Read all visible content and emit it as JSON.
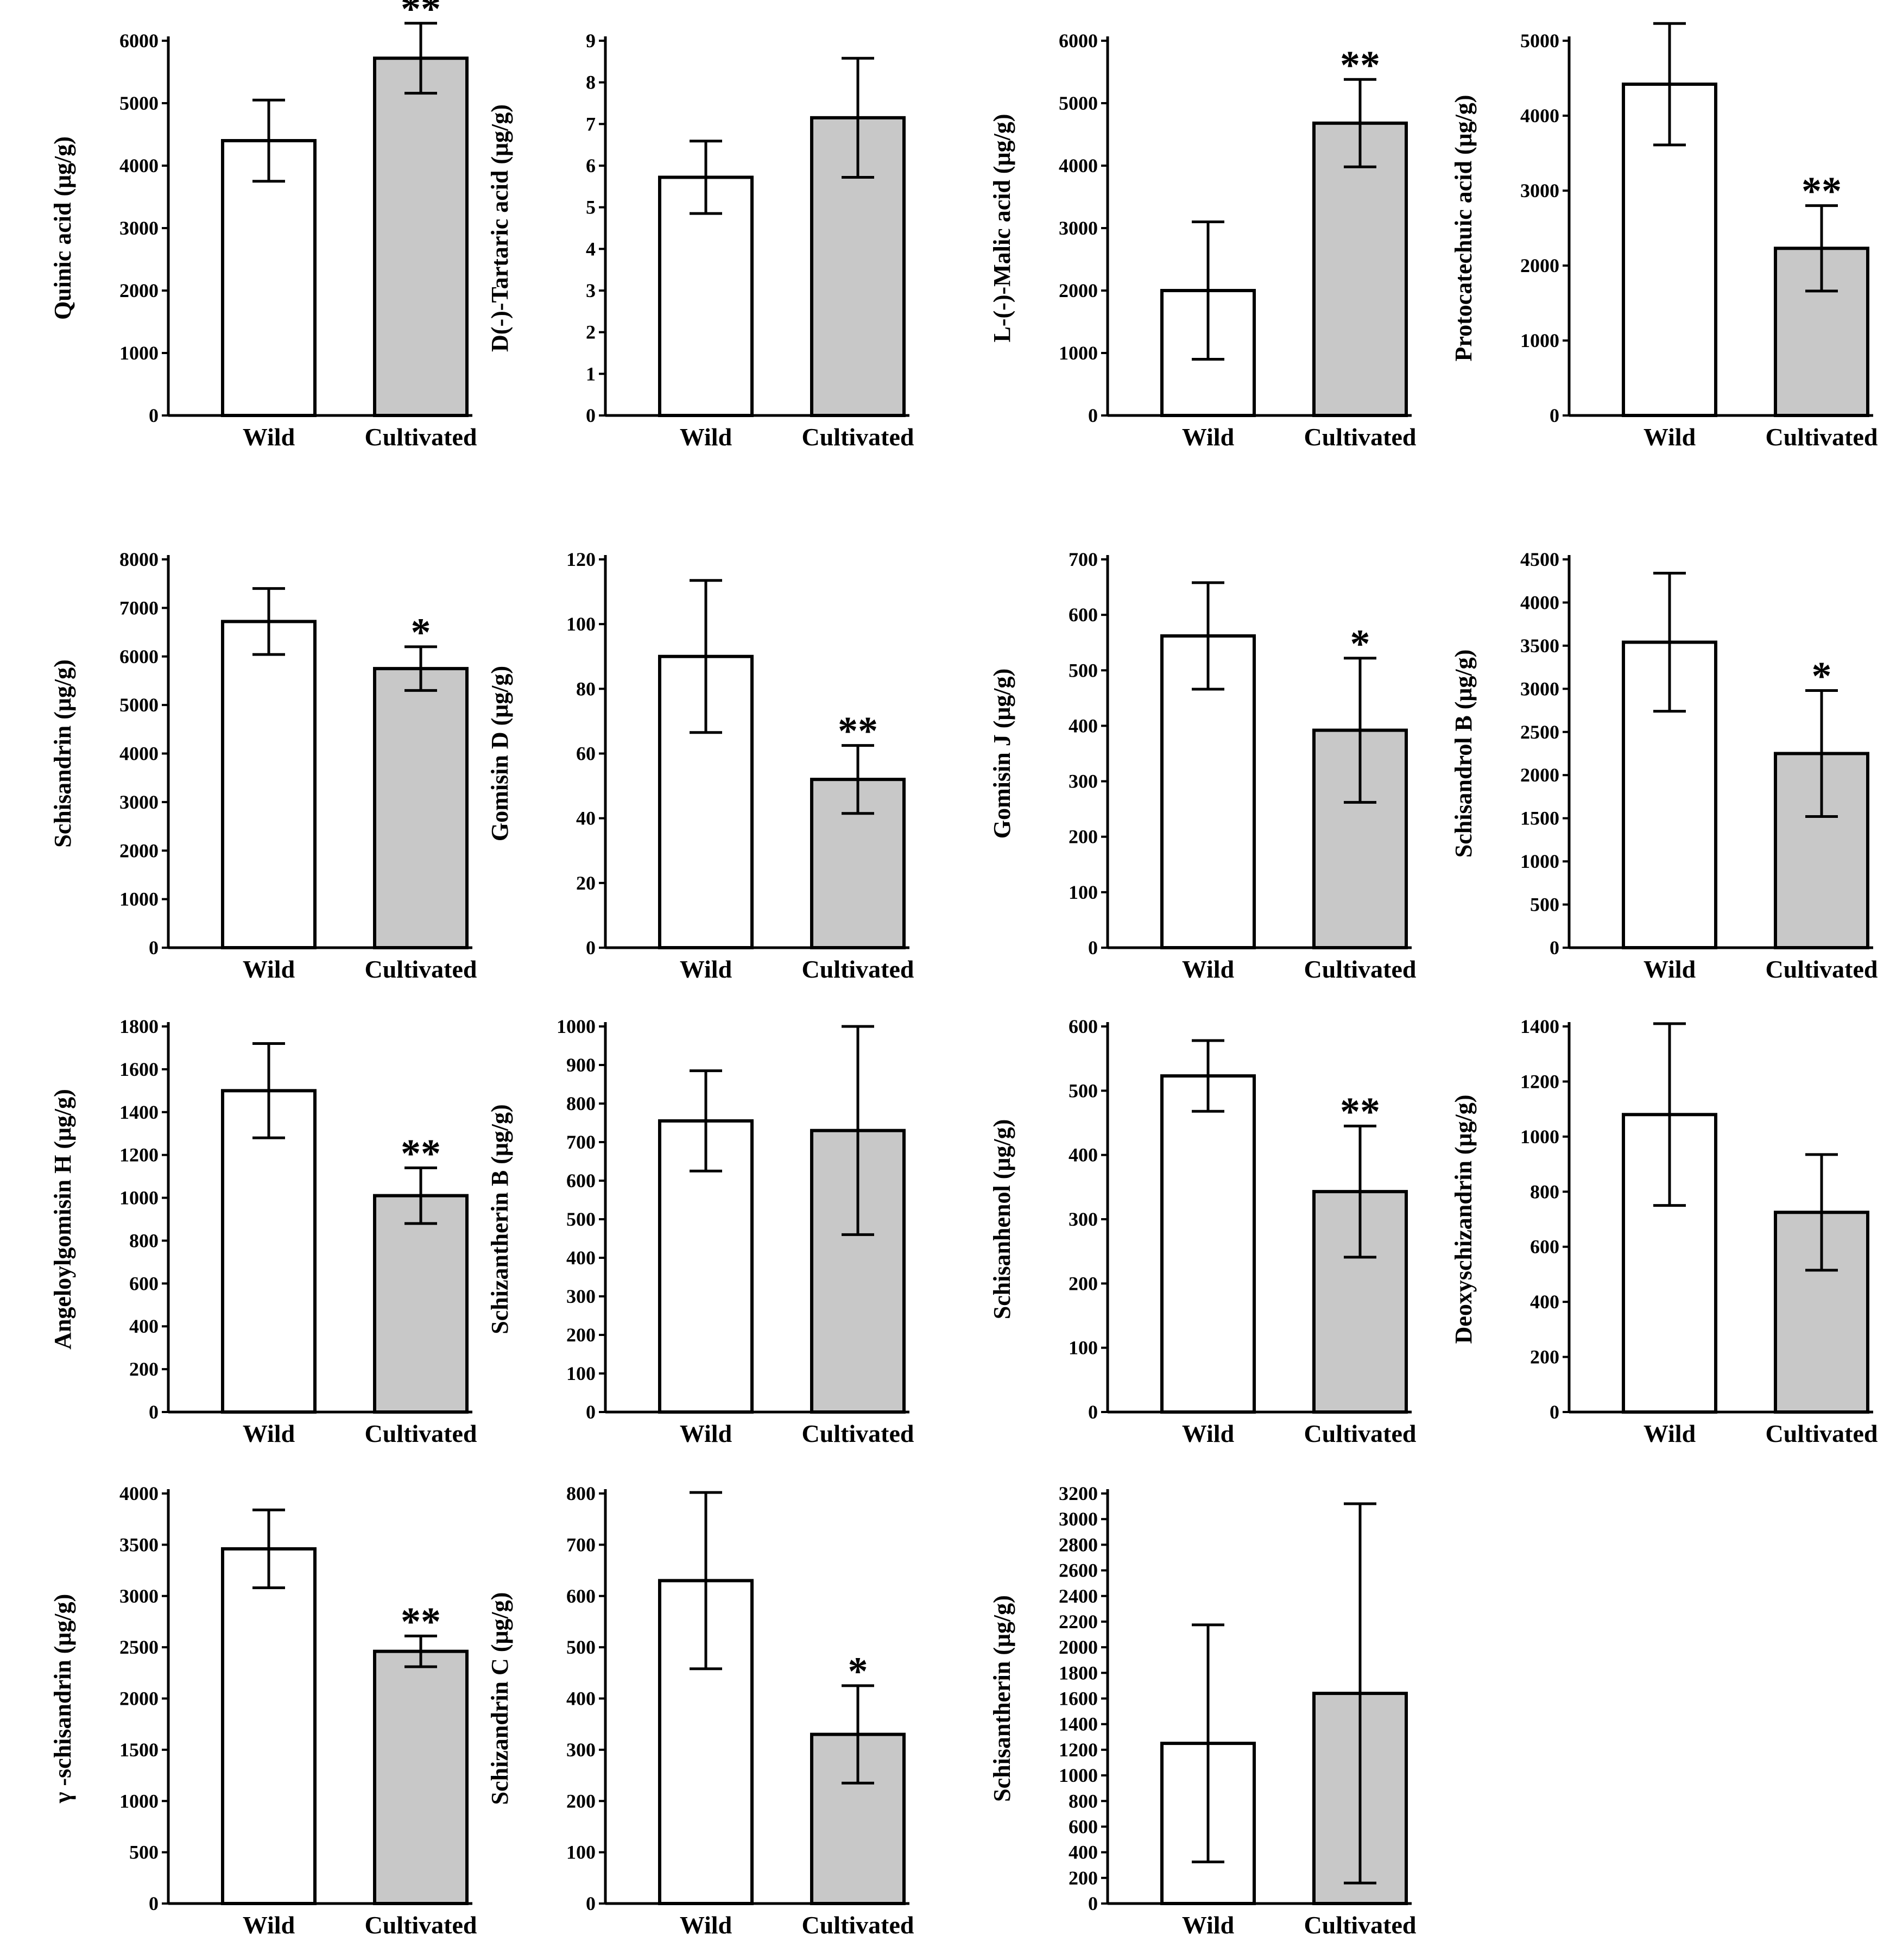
{
  "figure": {
    "layout": "4x4 grid of bar charts (15 panels)"
  },
  "colors": {
    "wild": "#ffffff",
    "cultivated": "#c8c8c8",
    "stroke": "#000000"
  },
  "chart_data": [
    {
      "type": "bar",
      "ylabel": "Quinic acid (μg/g)",
      "categories": [
        "Wild",
        "Cultivated"
      ],
      "values": [
        4400,
        5720
      ],
      "errors": [
        650,
        560
      ],
      "significance": [
        "",
        "**"
      ],
      "yticks": [
        0,
        1000,
        2000,
        3000,
        4000,
        5000,
        6000
      ],
      "ylim": [
        0,
        6000
      ]
    },
    {
      "type": "bar",
      "ylabel": "D(-)-Tartaric acid (μg/g)",
      "categories": [
        "Wild",
        "Cultivated"
      ],
      "values": [
        5.72,
        7.15
      ],
      "errors": [
        0.87,
        1.43
      ],
      "significance": [
        "",
        ""
      ],
      "yticks": [
        0,
        1,
        2,
        3,
        4,
        5,
        6,
        7,
        8,
        9
      ],
      "ylim": [
        0,
        9
      ]
    },
    {
      "type": "bar",
      "ylabel": "L-(-)-Malic acid (μg/g)",
      "categories": [
        "Wild",
        "Cultivated"
      ],
      "values": [
        2000,
        4680
      ],
      "errors": [
        1100,
        700
      ],
      "significance": [
        "",
        "**"
      ],
      "yticks": [
        0,
        1000,
        2000,
        3000,
        4000,
        5000,
        6000
      ],
      "ylim": [
        0,
        6000
      ]
    },
    {
      "type": "bar",
      "ylabel": "Protocatechuic acid (μg/g)",
      "categories": [
        "Wild",
        "Cultivated"
      ],
      "values": [
        4420,
        2230
      ],
      "errors": [
        810,
        570
      ],
      "significance": [
        "",
        "**"
      ],
      "yticks": [
        0,
        1000,
        2000,
        3000,
        4000,
        5000
      ],
      "ylim": [
        0,
        5000
      ]
    },
    {
      "type": "bar",
      "ylabel": "Schisandrin (μg/g)",
      "categories": [
        "Wild",
        "Cultivated"
      ],
      "values": [
        6720,
        5750
      ],
      "errors": [
        680,
        450
      ],
      "significance": [
        "",
        "*"
      ],
      "yticks": [
        0,
        1000,
        2000,
        3000,
        4000,
        5000,
        6000,
        7000,
        8000
      ],
      "ylim": [
        0,
        8000
      ]
    },
    {
      "type": "bar",
      "ylabel": "Gomisin D (μg/g)",
      "categories": [
        "Wild",
        "Cultivated"
      ],
      "values": [
        90,
        52
      ],
      "errors": [
        23.5,
        10.5
      ],
      "significance": [
        "",
        "**"
      ],
      "yticks": [
        0,
        20,
        40,
        60,
        80,
        100,
        120
      ],
      "ylim": [
        0,
        120
      ]
    },
    {
      "type": "bar",
      "ylabel": "Gomisin J (μg/g)",
      "categories": [
        "Wild",
        "Cultivated"
      ],
      "values": [
        562,
        392
      ],
      "errors": [
        96,
        130
      ],
      "significance": [
        "",
        "*"
      ],
      "yticks": [
        0,
        100,
        200,
        300,
        400,
        500,
        600,
        700
      ],
      "ylim": [
        0,
        700
      ]
    },
    {
      "type": "bar",
      "ylabel": "Schisandrol B (μg/g)",
      "categories": [
        "Wild",
        "Cultivated"
      ],
      "values": [
        3540,
        2250
      ],
      "errors": [
        800,
        730
      ],
      "significance": [
        "",
        "*"
      ],
      "yticks": [
        0,
        500,
        1000,
        1500,
        2000,
        2500,
        3000,
        3500,
        4000,
        4500
      ],
      "ylim": [
        0,
        4500
      ]
    },
    {
      "type": "bar",
      "ylabel": "Angeloylgomisin H (μg/g)",
      "categories": [
        "Wild",
        "Cultivated"
      ],
      "values": [
        1500,
        1010
      ],
      "errors": [
        220,
        130
      ],
      "significance": [
        "",
        "**"
      ],
      "yticks": [
        0,
        200,
        400,
        600,
        800,
        1000,
        1200,
        1400,
        1600,
        1800
      ],
      "ylim": [
        0,
        1800
      ]
    },
    {
      "type": "bar",
      "ylabel": "Schizantherin B (μg/g)",
      "categories": [
        "Wild",
        "Cultivated"
      ],
      "values": [
        755,
        730
      ],
      "errors": [
        130,
        270
      ],
      "significance": [
        "",
        ""
      ],
      "yticks": [
        0,
        100,
        200,
        300,
        400,
        500,
        600,
        700,
        800,
        900,
        1000
      ],
      "ylim": [
        0,
        1000
      ]
    },
    {
      "type": "bar",
      "ylabel": "Schisanhenol (μg/g)",
      "categories": [
        "Wild",
        "Cultivated"
      ],
      "values": [
        523,
        343
      ],
      "errors": [
        55,
        102
      ],
      "significance": [
        "",
        "**"
      ],
      "yticks": [
        0,
        100,
        200,
        300,
        400,
        500,
        600
      ],
      "ylim": [
        0,
        600
      ]
    },
    {
      "type": "bar",
      "ylabel": "Deoxyschizandrin (μg/g)",
      "categories": [
        "Wild",
        "Cultivated"
      ],
      "values": [
        1080,
        725
      ],
      "errors": [
        330,
        210
      ],
      "significance": [
        "",
        ""
      ],
      "yticks": [
        0,
        200,
        400,
        600,
        800,
        1000,
        1200,
        1400
      ],
      "ylim": [
        0,
        1400
      ]
    },
    {
      "type": "bar",
      "ylabel": "γ -schisandrin (μg/g)",
      "categories": [
        "Wild",
        "Cultivated"
      ],
      "values": [
        3460,
        2460
      ],
      "errors": [
        380,
        150
      ],
      "significance": [
        "",
        "**"
      ],
      "yticks": [
        0,
        500,
        1000,
        1500,
        2000,
        2500,
        3000,
        3500,
        4000
      ],
      "ylim": [
        0,
        4000
      ]
    },
    {
      "type": "bar",
      "ylabel": "Schizandrin C (μg/g)",
      "categories": [
        "Wild",
        "Cultivated"
      ],
      "values": [
        630,
        330
      ],
      "errors": [
        172,
        95
      ],
      "significance": [
        "",
        "*"
      ],
      "yticks": [
        0,
        100,
        200,
        300,
        400,
        500,
        600,
        700,
        800
      ],
      "ylim": [
        0,
        800
      ]
    },
    {
      "type": "bar",
      "ylabel": "Schisantherin (μg/g)",
      "categories": [
        "Wild",
        "Cultivated"
      ],
      "values": [
        1250,
        1640
      ],
      "errors": [
        925,
        1480
      ],
      "significance": [
        "",
        ""
      ],
      "yticks": [
        0,
        200,
        400,
        600,
        800,
        1000,
        1200,
        1400,
        1600,
        1800,
        2000,
        2200,
        2400,
        2600,
        2800,
        3000,
        3200
      ],
      "ylim": [
        0,
        3200
      ]
    }
  ]
}
